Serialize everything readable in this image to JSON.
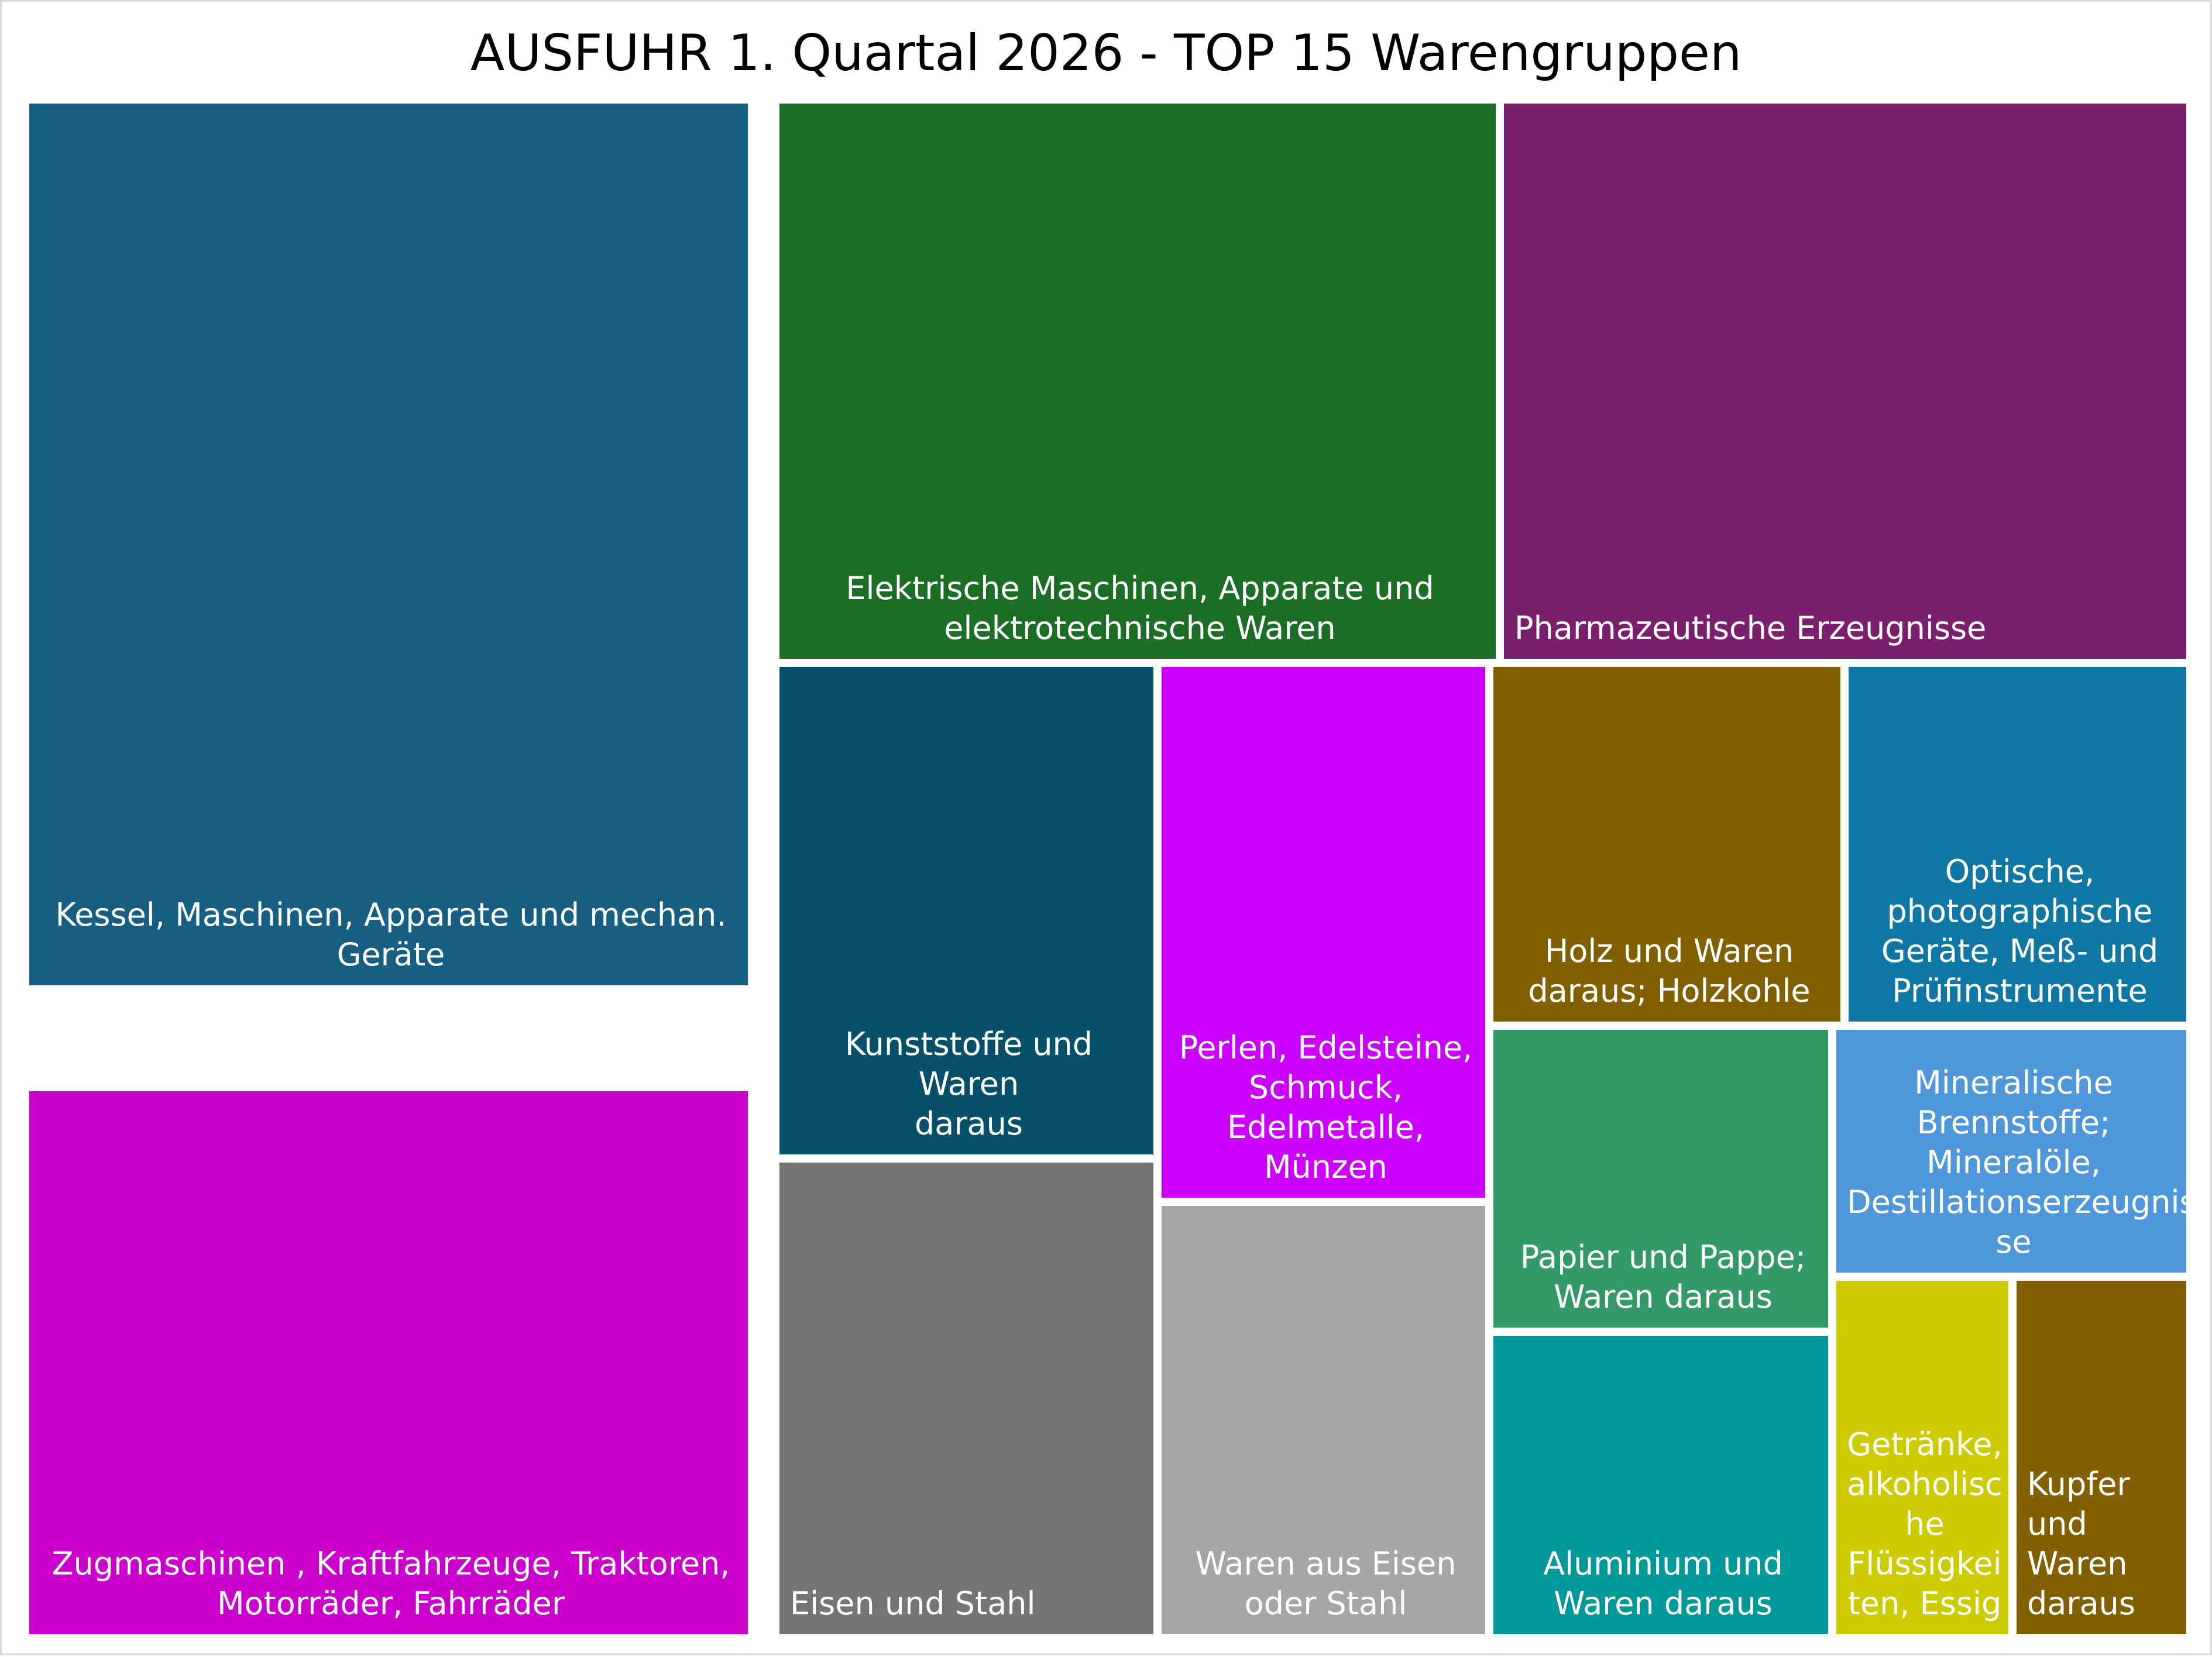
{
  "chart_data": {
    "type": "treemap",
    "title": "AUSFUHR 1. Quartal 2026 - TOP 15 Warengruppen",
    "items": [
      {
        "label": "Kessel, Maschinen, Apparate und mechan.\nGeräte",
        "value": 1000,
        "color": "#175f82"
      },
      {
        "label": "Zugmaschinen , Kraftfahrzeuge, Traktoren,\nMotorräder, Fahrräder",
        "value": 550,
        "color": "#cc00cc"
      },
      {
        "label": "Elektrische Maschinen, Apparate und\nelektrotechnische Waren",
        "value": 555,
        "color": "#1d6e25"
      },
      {
        "label": "Pharmazeutische Erzeugnisse",
        "value": 528,
        "color": "#7a1f6b"
      },
      {
        "label": "Kunststoffe und Waren\ndaraus",
        "value": 257,
        "color": "#07506a"
      },
      {
        "label": "Eisen und Stahl",
        "value": 247,
        "color": "#757575"
      },
      {
        "label": "Perlen, Edelsteine,\nSchmuck,\nEdelmetalle,\nMünzen",
        "value": 244,
        "color": "#cc00ff"
      },
      {
        "label": "Waren aus Eisen\noder Stahl",
        "value": 210,
        "color": "#a6a6a6"
      },
      {
        "label": "Holz und Waren\ndaraus; Holzkohle",
        "value": 175,
        "color": "#806000"
      },
      {
        "label": "Optische,\nphotographische\nGeräte, Meß- und\nPrüfinstrumente",
        "value": 169,
        "color": "#0e77a3"
      },
      {
        "label": "Papier und Pappe;\nWaren daraus",
        "value": 140,
        "color": "#339966"
      },
      {
        "label": "Aluminium und\nWaren daraus",
        "value": 134,
        "color": "#009999"
      },
      {
        "label": "Mineralische\nBrennstoffe;\nMineralöle,\nDestillationserzeugnis\nse",
        "value": 122,
        "color": "#4f97db"
      },
      {
        "label": "Getränke,\nalkoholisc\nhe\nFlüssigkei\nten, Essig",
        "value": 82,
        "color": "#cccc00"
      },
      {
        "label": "Kupfer\nund\nWaren\ndaraus",
        "value": 82,
        "color": "#806000"
      }
    ]
  }
}
